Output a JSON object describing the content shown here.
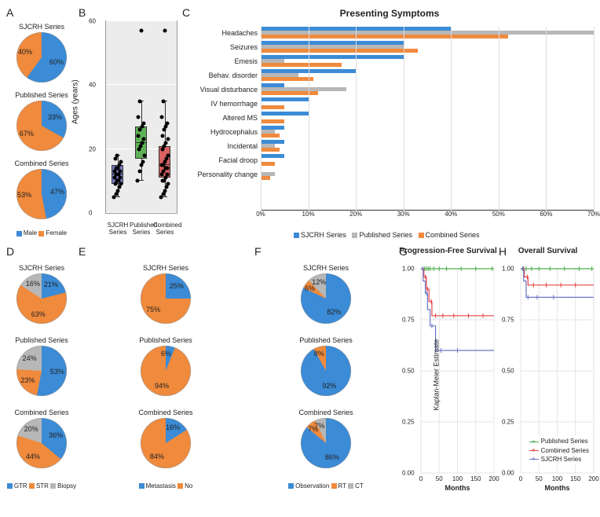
{
  "colors": {
    "blue": "#3b8bd6",
    "orange": "#f08a3c",
    "gray": "#b7b7b7",
    "green": "#5fb157",
    "red": "#d96262",
    "purple": "#7b7fc4",
    "km_green": "#4aaf4a",
    "km_red": "#e54545",
    "km_blue": "#6a77c9",
    "box_bg": "#ececec"
  },
  "series_names": {
    "sjcrh": "SJCRH Series",
    "published": "Published Series",
    "combined": "Combined Series"
  },
  "panelA": {
    "title": "A",
    "legend": [
      "Male",
      "Female"
    ],
    "pies": [
      {
        "title_key": "sjcrh",
        "slices": [
          {
            "label": "60%",
            "value": 60,
            "color": "blue"
          },
          {
            "label": "40%",
            "value": 40,
            "color": "orange"
          }
        ]
      },
      {
        "title_key": "published",
        "slices": [
          {
            "label": "33%",
            "value": 33,
            "color": "blue"
          },
          {
            "label": "67%",
            "value": 67,
            "color": "orange"
          }
        ]
      },
      {
        "title_key": "combined",
        "slices": [
          {
            "label": "47%",
            "value": 47,
            "color": "blue"
          },
          {
            "label": "53%",
            "value": 53,
            "color": "orange"
          }
        ]
      }
    ]
  },
  "panelB": {
    "title": "B",
    "ylabel": "Ages (years)",
    "ylim": [
      0,
      60
    ],
    "yticks": [
      0,
      20,
      40,
      60
    ],
    "groups": [
      {
        "name_key": "sjcrh",
        "color": "purple",
        "q1": 9,
        "median": 12,
        "q3": 15,
        "lo": 5,
        "hi": 18,
        "points": [
          5,
          6,
          7,
          8,
          9,
          9,
          10,
          10,
          11,
          11,
          12,
          12,
          13,
          13,
          14,
          14,
          15,
          16,
          17,
          18
        ]
      },
      {
        "name_key": "published",
        "color": "green",
        "q1": 17,
        "median": 22,
        "q3": 27,
        "lo": 10,
        "hi": 35,
        "points": [
          10,
          13,
          15,
          16,
          18,
          20,
          21,
          22,
          23,
          24,
          26,
          27,
          28,
          30,
          35,
          57
        ]
      },
      {
        "name_key": "combined",
        "color": "red",
        "q1": 11,
        "median": 15,
        "q3": 21,
        "lo": 5,
        "hi": 35,
        "points": [
          5,
          6,
          7,
          8,
          9,
          10,
          10,
          11,
          12,
          12,
          13,
          14,
          14,
          15,
          15,
          16,
          17,
          18,
          20,
          21,
          22,
          23,
          24,
          26,
          27,
          28,
          30,
          35,
          57
        ]
      }
    ]
  },
  "panelC": {
    "title": "C",
    "chart_title": "Presenting Symptoms",
    "xmax": 70,
    "xticks": [
      0,
      10,
      20,
      30,
      40,
      50,
      60,
      70
    ],
    "legend": [
      "SJCRH Series",
      "Published Series",
      "Combined Series"
    ],
    "legend_colors": [
      "blue",
      "gray",
      "orange"
    ],
    "categories": [
      {
        "label": "Headaches",
        "values": [
          40,
          70,
          52
        ]
      },
      {
        "label": "Seizures",
        "values": [
          30,
          30,
          33
        ]
      },
      {
        "label": "Emesis",
        "values": [
          30,
          5,
          17
        ]
      },
      {
        "label": "Behav. disorder",
        "values": [
          20,
          8,
          11
        ]
      },
      {
        "label": "Visual disturbance",
        "values": [
          5,
          18,
          12
        ]
      },
      {
        "label": "IV hemorrhage",
        "values": [
          10,
          0,
          5
        ]
      },
      {
        "label": "Altered MS",
        "values": [
          10,
          0,
          5
        ]
      },
      {
        "label": "Hydrocephalus",
        "values": [
          5,
          3,
          4
        ]
      },
      {
        "label": "Incidental",
        "values": [
          5,
          3,
          4
        ]
      },
      {
        "label": "Facial droop",
        "values": [
          5,
          0,
          3
        ]
      },
      {
        "label": "Personality change",
        "values": [
          0,
          3,
          2
        ]
      }
    ]
  },
  "panelD": {
    "title": "D",
    "legend": [
      "GTR",
      "STR",
      "Biopsy"
    ],
    "pies": [
      {
        "title_key": "sjcrh",
        "slices": [
          {
            "label": "21%",
            "value": 21,
            "color": "blue"
          },
          {
            "label": "63%",
            "value": 63,
            "color": "orange"
          },
          {
            "label": "16%",
            "value": 16,
            "color": "gray"
          }
        ]
      },
      {
        "title_key": "published",
        "slices": [
          {
            "label": "53%",
            "value": 53,
            "color": "blue"
          },
          {
            "label": "23%",
            "value": 23,
            "color": "orange"
          },
          {
            "label": "24%",
            "value": 24,
            "color": "gray"
          }
        ]
      },
      {
        "title_key": "combined",
        "slices": [
          {
            "label": "36%",
            "value": 36,
            "color": "blue"
          },
          {
            "label": "44%",
            "value": 44,
            "color": "orange"
          },
          {
            "label": "20%",
            "value": 20,
            "color": "gray"
          }
        ]
      }
    ]
  },
  "panelE": {
    "title": "E",
    "legend": [
      "Metastasis",
      "No"
    ],
    "pies": [
      {
        "title_key": "sjcrh",
        "slices": [
          {
            "label": "25%",
            "value": 25,
            "color": "blue"
          },
          {
            "label": "75%",
            "value": 75,
            "color": "orange"
          }
        ]
      },
      {
        "title_key": "published",
        "slices": [
          {
            "label": "6%",
            "value": 6,
            "color": "blue"
          },
          {
            "label": "94%",
            "value": 94,
            "color": "orange"
          }
        ]
      },
      {
        "title_key": "combined",
        "slices": [
          {
            "label": "16%",
            "value": 16,
            "color": "blue"
          },
          {
            "label": "84%",
            "value": 84,
            "color": "orange"
          }
        ]
      }
    ]
  },
  "panelF": {
    "title": "F",
    "legend": [
      "Observation",
      "RT",
      "CT"
    ],
    "pies": [
      {
        "title_key": "sjcrh",
        "slices": [
          {
            "label": "82%",
            "value": 82,
            "color": "blue"
          },
          {
            "label": "6%",
            "value": 6,
            "color": "orange"
          },
          {
            "label": "12%",
            "value": 12,
            "color": "gray"
          }
        ]
      },
      {
        "title_key": "published",
        "slices": [
          {
            "label": "92%",
            "value": 92,
            "color": "blue"
          },
          {
            "label": "8%",
            "value": 8,
            "color": "orange"
          }
        ]
      },
      {
        "title_key": "combined",
        "slices": [
          {
            "label": "86%",
            "value": 86,
            "color": "blue"
          },
          {
            "label": "7%",
            "value": 7,
            "color": "orange"
          },
          {
            "label": "7%",
            "value": 7,
            "color": "gray"
          }
        ]
      }
    ]
  },
  "panelG": {
    "title": "G",
    "chart_title": "Progression-Free Survival",
    "xmax": 200,
    "xticks": [
      0,
      50,
      100,
      150,
      200
    ],
    "yticks": [
      0,
      0.25,
      0.5,
      0.75,
      1.0
    ],
    "yticklabels": [
      "0.00",
      "0.25",
      "0.50",
      "0.75",
      "1.00"
    ],
    "ylabel": "Kaplan-Meier Estimate",
    "xlabel": "Months",
    "curves": [
      {
        "name_key": "published",
        "color": "km_green",
        "steps": [
          [
            0,
            1.0
          ],
          [
            5,
            1.0
          ],
          [
            10,
            1.0
          ],
          [
            200,
            1.0
          ]
        ],
        "ticks": [
          5,
          10,
          15,
          20,
          25,
          35,
          50,
          70,
          110,
          150,
          195
        ]
      },
      {
        "name_key": "combined",
        "color": "km_red",
        "steps": [
          [
            0,
            1.0
          ],
          [
            8,
            0.96
          ],
          [
            15,
            0.9
          ],
          [
            22,
            0.84
          ],
          [
            30,
            0.77
          ],
          [
            200,
            0.77
          ]
        ],
        "ticks": [
          12,
          18,
          28,
          40,
          60,
          90,
          130,
          170
        ]
      },
      {
        "name_key": "sjcrh",
        "color": "km_blue",
        "steps": [
          [
            0,
            1.0
          ],
          [
            6,
            0.94
          ],
          [
            12,
            0.88
          ],
          [
            18,
            0.8
          ],
          [
            25,
            0.72
          ],
          [
            40,
            0.6
          ],
          [
            200,
            0.6
          ]
        ],
        "ticks": [
          5,
          15,
          30,
          55,
          100
        ]
      }
    ]
  },
  "panelH": {
    "title": "H",
    "chart_title": "Overall Survival",
    "xmax": 200,
    "xticks": [
      0,
      50,
      100,
      150,
      200
    ],
    "yticks": [
      0,
      0.25,
      0.5,
      0.75,
      1.0
    ],
    "yticklabels": [
      "0.00",
      "0.25",
      "0.50",
      "0.75",
      "1.00"
    ],
    "xlabel": "Months",
    "curves": [
      {
        "name_key": "published",
        "color": "km_green",
        "steps": [
          [
            0,
            1.0
          ],
          [
            200,
            1.0
          ]
        ],
        "ticks": [
          5,
          15,
          30,
          50,
          80,
          120,
          160,
          195
        ]
      },
      {
        "name_key": "combined",
        "color": "km_red",
        "steps": [
          [
            0,
            1.0
          ],
          [
            10,
            0.96
          ],
          [
            20,
            0.92
          ],
          [
            200,
            0.92
          ]
        ],
        "ticks": [
          8,
          18,
          35,
          70,
          110,
          150
        ]
      },
      {
        "name_key": "sjcrh",
        "color": "km_blue",
        "steps": [
          [
            0,
            1.0
          ],
          [
            8,
            0.94
          ],
          [
            15,
            0.86
          ],
          [
            200,
            0.86
          ]
        ],
        "ticks": [
          6,
          20,
          45,
          90
        ]
      }
    ],
    "legend_labels": [
      "Published Series",
      "Combined Series",
      "SJCRH Series"
    ],
    "legend_colors": [
      "km_green",
      "km_red",
      "km_blue"
    ]
  }
}
